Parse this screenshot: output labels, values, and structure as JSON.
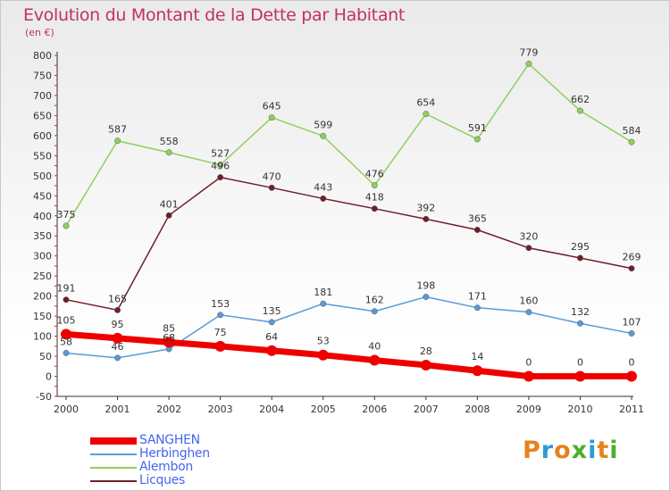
{
  "title": "Evolution du Montant de la Dette par Habitant",
  "unit": "(en €)",
  "logo": {
    "text": "Proxiti",
    "colors": [
      "#e4831c",
      "#2e9bd6",
      "#e4831c",
      "#4caf2a",
      "#2e9bd6",
      "#e4831c",
      "#4caf2a"
    ]
  },
  "chart_data": {
    "type": "line",
    "x": [
      "2000",
      "2001",
      "2002",
      "2003",
      "2004",
      "2005",
      "2006",
      "2007",
      "2008",
      "2009",
      "2010",
      "2011"
    ],
    "ylim": [
      -50,
      800
    ],
    "yticks": [
      -50,
      0,
      50,
      100,
      150,
      200,
      250,
      300,
      350,
      400,
      450,
      500,
      550,
      600,
      650,
      700,
      750,
      800
    ],
    "grid": false,
    "legend_position": "bottom-left",
    "series": [
      {
        "name": "SANGHEN",
        "color": "#ee0000",
        "values": [
          105,
          95,
          85,
          75,
          64,
          53,
          40,
          28,
          14,
          0,
          0,
          0
        ]
      },
      {
        "name": "Herbinghen",
        "color": "#5a9bd5",
        "values": [
          58,
          46,
          68,
          153,
          135,
          181,
          162,
          198,
          171,
          160,
          132,
          107
        ]
      },
      {
        "name": "Alembon",
        "color": "#8fd05a",
        "values": [
          375,
          587,
          558,
          527,
          645,
          599,
          476,
          654,
          591,
          779,
          662,
          584
        ]
      },
      {
        "name": "Licques",
        "color": "#6e1f2a",
        "values": [
          191,
          165,
          401,
          496,
          470,
          443,
          418,
          392,
          365,
          320,
          295,
          269
        ]
      }
    ]
  }
}
